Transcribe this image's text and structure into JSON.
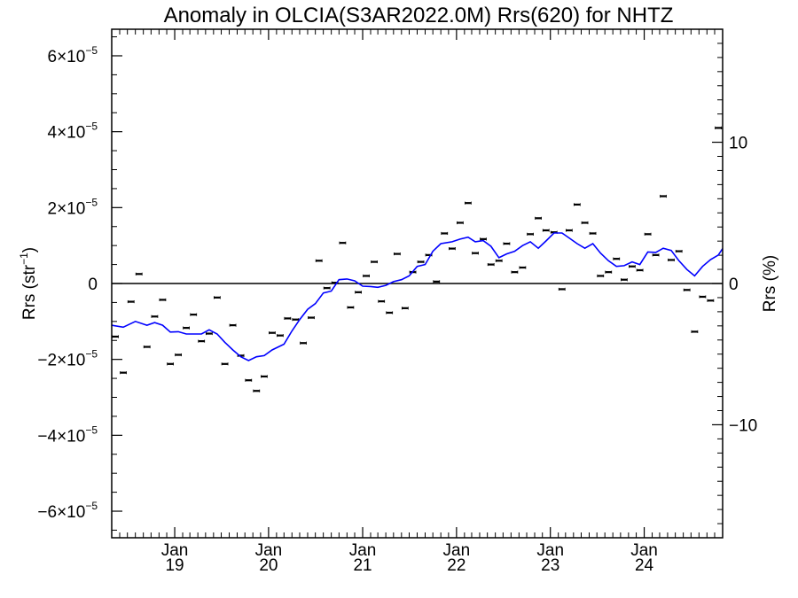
{
  "chart_data": {
    "type": "scatter",
    "title": "Anomaly in OLCIA(S3AR2022.0M) Rrs(620) for NHTZ",
    "ylabel_left": {
      "main": "Rrs (str",
      "sup": "−1",
      "close": ")"
    },
    "ylabel_right": "Rrs (%)",
    "xlim": [
      "2018-05-01",
      "2024-11-01"
    ],
    "ylim": [
      -6.7e-05,
      6.7e-05
    ],
    "right_ylim": [
      -18,
      18
    ],
    "zero_line": true,
    "grid": false,
    "left_ticks": [
      {
        "value": -6e-05,
        "mant": "−6×10",
        "exp": "−5"
      },
      {
        "value": -4e-05,
        "mant": "−4×10",
        "exp": "−5"
      },
      {
        "value": -2e-05,
        "mant": "−2×10",
        "exp": "−5"
      },
      {
        "value": 0,
        "mant": "0",
        "exp": ""
      },
      {
        "value": 2e-05,
        "mant": "2×10",
        "exp": "−5"
      },
      {
        "value": 4e-05,
        "mant": "4×10",
        "exp": "−5"
      },
      {
        "value": 6e-05,
        "mant": "6×10",
        "exp": "−5"
      }
    ],
    "right_ticks": [
      {
        "value": -10,
        "label": "−10"
      },
      {
        "value": 0,
        "label": "0"
      },
      {
        "value": 10,
        "label": "10"
      }
    ],
    "x_ticks": [
      {
        "date": "2019-01-01",
        "month": "Jan",
        "year": "19"
      },
      {
        "date": "2020-01-01",
        "month": "Jan",
        "year": "20"
      },
      {
        "date": "2021-01-01",
        "month": "Jan",
        "year": "21"
      },
      {
        "date": "2022-01-01",
        "month": "Jan",
        "year": "22"
      },
      {
        "date": "2023-01-01",
        "month": "Jan",
        "year": "23"
      },
      {
        "date": "2024-01-01",
        "month": "Jan",
        "year": "24"
      }
    ],
    "series": [
      {
        "kind": "points",
        "color": "#000000",
        "points": [
          [
            "2018-05-15",
            -1.4e-05
          ],
          [
            "2018-06-15",
            -2.35e-05
          ],
          [
            "2018-07-15",
            -4.8e-06
          ],
          [
            "2018-08-15",
            2.5e-06
          ],
          [
            "2018-09-15",
            -1.67e-05
          ],
          [
            "2018-10-15",
            -8.7e-06
          ],
          [
            "2018-11-15",
            -4.3e-06
          ],
          [
            "2018-12-15",
            -2.12e-05
          ],
          [
            "2019-01-15",
            -1.88e-05
          ],
          [
            "2019-02-15",
            -1.17e-05
          ],
          [
            "2019-03-15",
            -8.2e-06
          ],
          [
            "2019-04-15",
            -1.52e-05
          ],
          [
            "2019-05-15",
            -1.32e-05
          ],
          [
            "2019-06-15",
            -3.7e-06
          ],
          [
            "2019-07-15",
            -2.12e-05
          ],
          [
            "2019-08-15",
            -1.1e-05
          ],
          [
            "2019-09-15",
            -1.9e-05
          ],
          [
            "2019-10-15",
            -2.55e-05
          ],
          [
            "2019-11-15",
            -2.83e-05
          ],
          [
            "2019-12-15",
            -2.45e-05
          ],
          [
            "2020-01-15",
            -1.3e-05
          ],
          [
            "2020-02-15",
            -1.37e-05
          ],
          [
            "2020-03-15",
            -9.2e-06
          ],
          [
            "2020-04-15",
            -9.5e-06
          ],
          [
            "2020-05-15",
            -1.57e-05
          ],
          [
            "2020-06-15",
            -9e-06
          ],
          [
            "2020-07-15",
            6e-06
          ],
          [
            "2020-08-15",
            -1.2e-06
          ],
          [
            "2020-09-15",
            2e-07
          ],
          [
            "2020-10-15",
            1.07e-05
          ],
          [
            "2020-11-15",
            -6.3e-06
          ],
          [
            "2020-12-15",
            -2.3e-06
          ],
          [
            "2021-01-15",
            2e-06
          ],
          [
            "2021-02-15",
            5.7e-06
          ],
          [
            "2021-03-15",
            -4.7e-06
          ],
          [
            "2021-04-15",
            -7.7e-06
          ],
          [
            "2021-05-15",
            7.8e-06
          ],
          [
            "2021-06-15",
            -6.5e-06
          ],
          [
            "2021-07-15",
            3e-06
          ],
          [
            "2021-08-15",
            5.7e-06
          ],
          [
            "2021-09-15",
            7.5e-06
          ],
          [
            "2021-10-15",
            5e-07
          ],
          [
            "2021-11-15",
            1.32e-05
          ],
          [
            "2021-12-15",
            9.2e-06
          ],
          [
            "2022-01-15",
            1.6e-05
          ],
          [
            "2022-02-15",
            2.12e-05
          ],
          [
            "2022-03-15",
            8e-06
          ],
          [
            "2022-04-15",
            1.17e-05
          ],
          [
            "2022-05-15",
            5e-06
          ],
          [
            "2022-06-15",
            6e-06
          ],
          [
            "2022-07-15",
            1.05e-05
          ],
          [
            "2022-08-15",
            3e-06
          ],
          [
            "2022-09-15",
            4.2e-06
          ],
          [
            "2022-10-15",
            1.3e-05
          ],
          [
            "2022-11-15",
            1.72e-05
          ],
          [
            "2022-12-15",
            1.4e-05
          ],
          [
            "2023-01-15",
            1.35e-05
          ],
          [
            "2023-02-15",
            -1.5e-06
          ],
          [
            "2023-03-15",
            1.4e-05
          ],
          [
            "2023-04-15",
            2.08e-05
          ],
          [
            "2023-05-15",
            1.6e-05
          ],
          [
            "2023-06-15",
            1.32e-05
          ],
          [
            "2023-07-15",
            2e-06
          ],
          [
            "2023-08-15",
            3e-06
          ],
          [
            "2023-09-15",
            6.5e-06
          ],
          [
            "2023-10-15",
            1e-06
          ],
          [
            "2023-11-15",
            4.5e-06
          ],
          [
            "2023-12-15",
            3.5e-06
          ],
          [
            "2024-01-15",
            1.3e-05
          ],
          [
            "2024-02-15",
            7.5e-06
          ],
          [
            "2024-03-15",
            2.3e-05
          ],
          [
            "2024-04-15",
            6.2e-06
          ],
          [
            "2024-05-15",
            8.5e-06
          ],
          [
            "2024-06-15",
            -1.7e-06
          ],
          [
            "2024-07-15",
            -1.27e-05
          ],
          [
            "2024-08-15",
            -3.5e-06
          ],
          [
            "2024-09-15",
            -4.5e-06
          ],
          [
            "2024-10-15",
            4.1e-05
          ]
        ]
      },
      {
        "kind": "line",
        "color": "#0000ff",
        "points": [
          [
            "2018-05-01",
            -1.1e-05
          ],
          [
            "2018-06-15",
            -1.15e-05
          ],
          [
            "2018-08-01",
            -1e-05
          ],
          [
            "2018-09-15",
            -1.1e-05
          ],
          [
            "2018-10-15",
            -1.03e-05
          ],
          [
            "2018-11-15",
            -1.1e-05
          ],
          [
            "2018-12-15",
            -1.28e-05
          ],
          [
            "2019-01-15",
            -1.27e-05
          ],
          [
            "2019-02-15",
            -1.33e-05
          ],
          [
            "2019-03-15",
            -1.33e-05
          ],
          [
            "2019-04-15",
            -1.33e-05
          ],
          [
            "2019-05-15",
            -1.22e-05
          ],
          [
            "2019-06-15",
            -1.33e-05
          ],
          [
            "2019-07-15",
            -1.55e-05
          ],
          [
            "2019-08-15",
            -1.75e-05
          ],
          [
            "2019-09-15",
            -1.93e-05
          ],
          [
            "2019-10-15",
            -2.03e-05
          ],
          [
            "2019-11-15",
            -1.93e-05
          ],
          [
            "2019-12-15",
            -1.9e-05
          ],
          [
            "2020-01-15",
            -1.75e-05
          ],
          [
            "2020-03-01",
            -1.6e-05
          ],
          [
            "2020-04-01",
            -1.25e-05
          ],
          [
            "2020-05-01",
            -9.5e-06
          ],
          [
            "2020-06-01",
            -6.8e-06
          ],
          [
            "2020-07-01",
            -5.3e-06
          ],
          [
            "2020-08-01",
            -2.5e-06
          ],
          [
            "2020-09-01",
            -2e-06
          ],
          [
            "2020-10-01",
            1e-06
          ],
          [
            "2020-11-01",
            1.2e-06
          ],
          [
            "2020-12-01",
            7e-07
          ],
          [
            "2021-01-01",
            -7e-07
          ],
          [
            "2021-02-01",
            -8e-07
          ],
          [
            "2021-03-01",
            -1e-06
          ],
          [
            "2021-04-01",
            -5e-07
          ],
          [
            "2021-05-01",
            5e-07
          ],
          [
            "2021-06-01",
            1e-06
          ],
          [
            "2021-07-01",
            2e-06
          ],
          [
            "2021-08-01",
            4.5e-06
          ],
          [
            "2021-09-01",
            5e-06
          ],
          [
            "2021-10-01",
            8.5e-06
          ],
          [
            "2021-11-01",
            1.05e-05
          ],
          [
            "2021-12-15",
            1.1e-05
          ],
          [
            "2022-01-15",
            1.17e-05
          ],
          [
            "2022-02-15",
            1.22e-05
          ],
          [
            "2022-03-15",
            1.1e-05
          ],
          [
            "2022-04-15",
            1.13e-05
          ],
          [
            "2022-05-15",
            9.8e-06
          ],
          [
            "2022-06-15",
            6.8e-06
          ],
          [
            "2022-07-15",
            7.8e-06
          ],
          [
            "2022-08-15",
            8.5e-06
          ],
          [
            "2022-09-15",
            1e-05
          ],
          [
            "2022-10-15",
            1.1e-05
          ],
          [
            "2022-11-15",
            9.3e-06
          ],
          [
            "2022-12-15",
            1.12e-05
          ],
          [
            "2023-01-15",
            1.33e-05
          ],
          [
            "2023-02-15",
            1.33e-05
          ],
          [
            "2023-03-15",
            1.2e-05
          ],
          [
            "2023-04-15",
            1.05e-05
          ],
          [
            "2023-05-15",
            9.3e-06
          ],
          [
            "2023-06-15",
            1.05e-05
          ],
          [
            "2023-07-15",
            8e-06
          ],
          [
            "2023-08-15",
            6e-06
          ],
          [
            "2023-09-15",
            4.5e-06
          ],
          [
            "2023-10-15",
            4.7e-06
          ],
          [
            "2023-11-15",
            5.7e-06
          ],
          [
            "2023-12-15",
            5e-06
          ],
          [
            "2024-01-15",
            8.3e-06
          ],
          [
            "2024-02-15",
            8.2e-06
          ],
          [
            "2024-03-15",
            9.3e-06
          ],
          [
            "2024-04-15",
            8.7e-06
          ],
          [
            "2024-05-15",
            6e-06
          ],
          [
            "2024-06-15",
            3.7e-06
          ],
          [
            "2024-07-15",
            2e-06
          ],
          [
            "2024-08-15",
            4.5e-06
          ],
          [
            "2024-09-15",
            6.3e-06
          ],
          [
            "2024-10-15",
            7.5e-06
          ],
          [
            "2024-11-01",
            9.2e-06
          ]
        ]
      }
    ]
  }
}
